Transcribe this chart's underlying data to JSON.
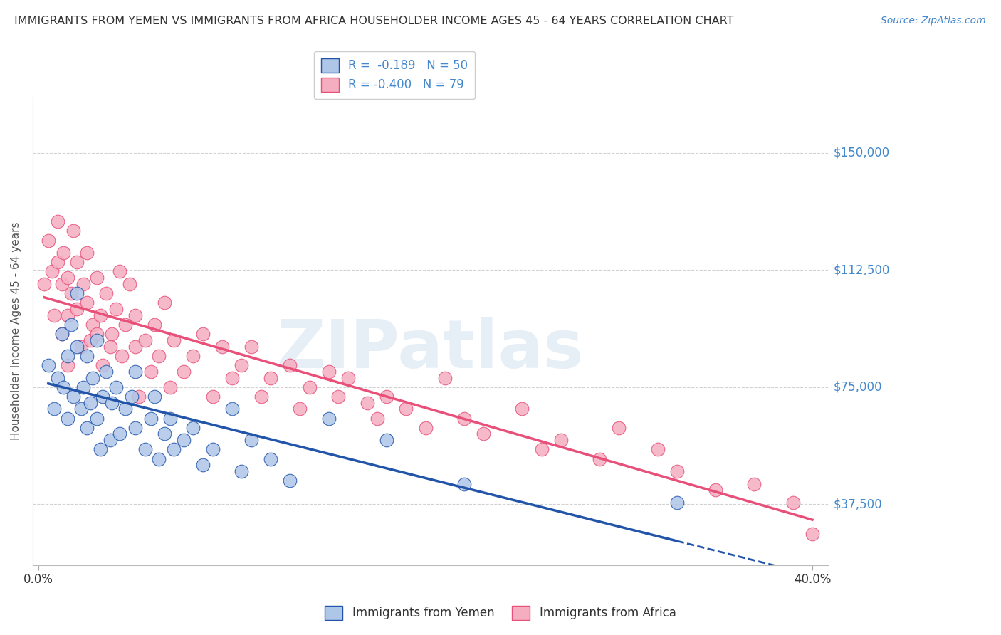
{
  "title": "IMMIGRANTS FROM YEMEN VS IMMIGRANTS FROM AFRICA HOUSEHOLDER INCOME AGES 45 - 64 YEARS CORRELATION CHART",
  "source": "Source: ZipAtlas.com",
  "ylabel": "Householder Income Ages 45 - 64 years",
  "xlim": [
    -0.003,
    0.408
  ],
  "ylim": [
    18000,
    168000
  ],
  "yticks": [
    37500,
    75000,
    112500,
    150000
  ],
  "ytick_labels": [
    "$37,500",
    "$75,000",
    "$112,500",
    "$150,000"
  ],
  "xticks": [
    0.0,
    0.4
  ],
  "xtick_labels": [
    "0.0%",
    "40.0%"
  ],
  "legend_r_yemen": "-0.189",
  "legend_n_yemen": "50",
  "legend_r_africa": "-0.400",
  "legend_n_africa": "79",
  "yemen_color": "#aec6e8",
  "africa_color": "#f5adc0",
  "yemen_line_color": "#2255aa",
  "africa_line_color": "#e8507a",
  "background_color": "#ffffff",
  "grid_color": "#cccccc",
  "title_color": "#333333",
  "axis_label_color": "#555555",
  "ytick_color": "#4488cc",
  "watermark": "ZIPatlas",
  "yemen_scatter_x": [
    0.005,
    0.008,
    0.01,
    0.012,
    0.013,
    0.015,
    0.015,
    0.017,
    0.018,
    0.02,
    0.02,
    0.022,
    0.023,
    0.025,
    0.025,
    0.027,
    0.028,
    0.03,
    0.03,
    0.032,
    0.033,
    0.035,
    0.037,
    0.038,
    0.04,
    0.042,
    0.045,
    0.048,
    0.05,
    0.05,
    0.055,
    0.058,
    0.06,
    0.062,
    0.065,
    0.068,
    0.07,
    0.075,
    0.08,
    0.085,
    0.09,
    0.1,
    0.105,
    0.11,
    0.12,
    0.13,
    0.15,
    0.18,
    0.22,
    0.33
  ],
  "yemen_scatter_y": [
    82000,
    68000,
    78000,
    92000,
    75000,
    65000,
    85000,
    95000,
    72000,
    105000,
    88000,
    68000,
    75000,
    85000,
    62000,
    70000,
    78000,
    65000,
    90000,
    55000,
    72000,
    80000,
    58000,
    70000,
    75000,
    60000,
    68000,
    72000,
    62000,
    80000,
    55000,
    65000,
    72000,
    52000,
    60000,
    65000,
    55000,
    58000,
    62000,
    50000,
    55000,
    68000,
    48000,
    58000,
    52000,
    45000,
    65000,
    58000,
    44000,
    38000
  ],
  "africa_scatter_x": [
    0.003,
    0.005,
    0.007,
    0.008,
    0.01,
    0.01,
    0.012,
    0.012,
    0.013,
    0.015,
    0.015,
    0.015,
    0.017,
    0.018,
    0.02,
    0.02,
    0.022,
    0.023,
    0.025,
    0.025,
    0.027,
    0.028,
    0.03,
    0.03,
    0.032,
    0.033,
    0.035,
    0.037,
    0.038,
    0.04,
    0.042,
    0.043,
    0.045,
    0.047,
    0.05,
    0.05,
    0.052,
    0.055,
    0.058,
    0.06,
    0.062,
    0.065,
    0.068,
    0.07,
    0.075,
    0.08,
    0.085,
    0.09,
    0.095,
    0.1,
    0.105,
    0.11,
    0.115,
    0.12,
    0.13,
    0.135,
    0.14,
    0.15,
    0.155,
    0.16,
    0.17,
    0.175,
    0.18,
    0.19,
    0.2,
    0.21,
    0.22,
    0.23,
    0.25,
    0.26,
    0.27,
    0.29,
    0.3,
    0.32,
    0.33,
    0.35,
    0.37,
    0.39,
    0.4
  ],
  "africa_scatter_y": [
    108000,
    122000,
    112000,
    98000,
    128000,
    115000,
    108000,
    92000,
    118000,
    110000,
    98000,
    82000,
    105000,
    125000,
    115000,
    100000,
    88000,
    108000,
    118000,
    102000,
    90000,
    95000,
    110000,
    92000,
    98000,
    82000,
    105000,
    88000,
    92000,
    100000,
    112000,
    85000,
    95000,
    108000,
    88000,
    98000,
    72000,
    90000,
    80000,
    95000,
    85000,
    102000,
    75000,
    90000,
    80000,
    85000,
    92000,
    72000,
    88000,
    78000,
    82000,
    88000,
    72000,
    78000,
    82000,
    68000,
    75000,
    80000,
    72000,
    78000,
    70000,
    65000,
    72000,
    68000,
    62000,
    78000,
    65000,
    60000,
    68000,
    55000,
    58000,
    52000,
    62000,
    55000,
    48000,
    42000,
    44000,
    38000,
    28000
  ],
  "yemen_line_x0": 0.005,
  "yemen_line_x1": 0.33,
  "africa_line_x0": 0.003,
  "africa_line_x1": 0.4,
  "bottom_legend_labels": [
    "Immigrants from Yemen",
    "Immigrants from Africa"
  ]
}
